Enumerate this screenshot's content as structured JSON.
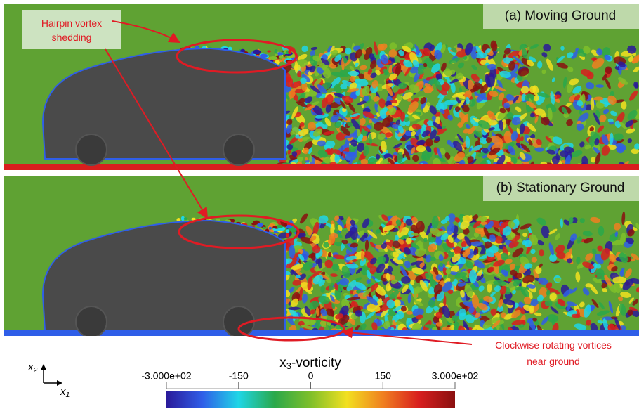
{
  "panels": [
    {
      "label": "(a) Moving Ground"
    },
    {
      "label": "(b) Stationary Ground"
    }
  ],
  "annotations": [
    {
      "text": "Hairpin vortex shedding"
    },
    {
      "text": "Clockwise rotating vortices near ground"
    }
  ],
  "axes": {
    "vertical": {
      "symbol": "x",
      "index": "2"
    },
    "horizontal": {
      "symbol": "x",
      "index": "1"
    }
  },
  "colorbar": {
    "title": {
      "symbol": "x",
      "index": "3",
      "suffix": "-vorticity"
    },
    "range": [
      -300,
      300
    ],
    "ticks": [
      {
        "value": -300,
        "label": "-3.000e+02"
      },
      -150,
      0,
      150,
      {
        "value": 300,
        "label": "3.000e+02"
      }
    ],
    "colormap": [
      "#2a1a9a",
      "#2f5ee8",
      "#1fd6e6",
      "#2aa84a",
      "#7fbf2a",
      "#f2e020",
      "#f08020",
      "#d81e1e",
      "#8a1010"
    ]
  }
}
